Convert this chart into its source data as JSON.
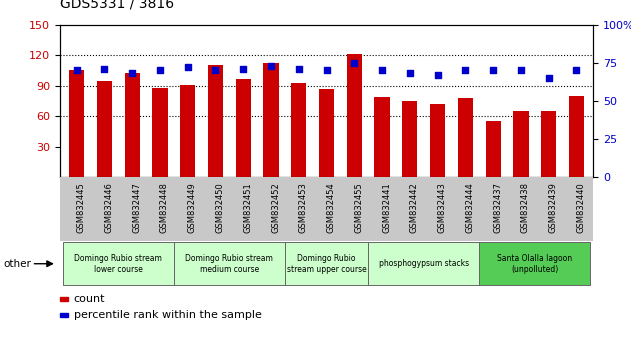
{
  "title": "GDS5331 / 3816",
  "samples": [
    "GSM832445",
    "GSM832446",
    "GSM832447",
    "GSM832448",
    "GSM832449",
    "GSM832450",
    "GSM832451",
    "GSM832452",
    "GSM832453",
    "GSM832454",
    "GSM832455",
    "GSM832441",
    "GSM832442",
    "GSM832443",
    "GSM832444",
    "GSM832437",
    "GSM832438",
    "GSM832439",
    "GSM832440"
  ],
  "counts": [
    105,
    95,
    102,
    88,
    91,
    110,
    97,
    112,
    93,
    87,
    121,
    79,
    75,
    72,
    78,
    55,
    65,
    65,
    80
  ],
  "percentiles": [
    70,
    71,
    68,
    70,
    72,
    70,
    71,
    73,
    71,
    70,
    75,
    70,
    68,
    67,
    70,
    70,
    70,
    65,
    70
  ],
  "ylim_left": [
    0,
    150
  ],
  "ylim_right": [
    0,
    100
  ],
  "yticks_left": [
    30,
    60,
    90,
    120,
    150
  ],
  "yticks_right": [
    0,
    25,
    50,
    75,
    100
  ],
  "bar_color": "#CC0000",
  "dot_color": "#0000CC",
  "groups": [
    {
      "label": "Domingo Rubio stream\nlower course",
      "start": 0,
      "end": 3,
      "color": "#ccffcc"
    },
    {
      "label": "Domingo Rubio stream\nmedium course",
      "start": 4,
      "end": 7,
      "color": "#ccffcc"
    },
    {
      "label": "Domingo Rubio\nstream upper course",
      "start": 8,
      "end": 10,
      "color": "#ccffcc"
    },
    {
      "label": "phosphogypsum stacks",
      "start": 11,
      "end": 14,
      "color": "#ccffcc"
    },
    {
      "label": "Santa Olalla lagoon\n(unpolluted)",
      "start": 15,
      "end": 18,
      "color": "#55cc55"
    }
  ],
  "legend_count_label": "count",
  "legend_pct_label": "percentile rank within the sample",
  "other_label": "other",
  "bg_color": "#ffffff",
  "tick_area_color": "#c8c8c8",
  "group_border_color": "#666666"
}
